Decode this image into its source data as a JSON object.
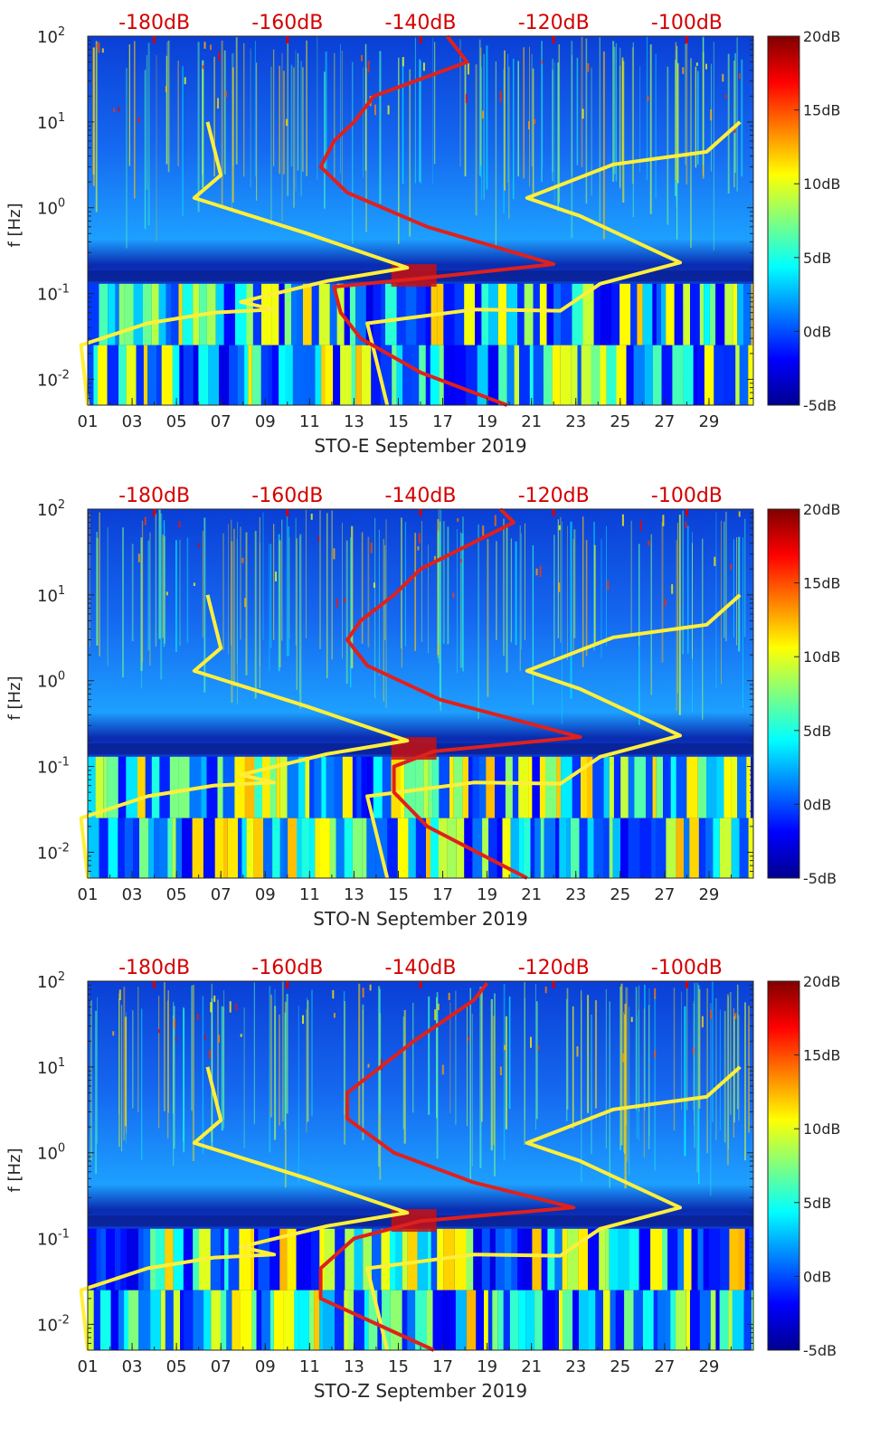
{
  "figure": {
    "ylabel": "f [Hz]",
    "y_ticks": [
      {
        "exp": -2,
        "base": "10",
        "sup": "-2"
      },
      {
        "exp": -1,
        "base": "10",
        "sup": "-1"
      },
      {
        "exp": 0,
        "base": "10",
        "sup": "0"
      },
      {
        "exp": 1,
        "base": "10",
        "sup": "1"
      },
      {
        "exp": 2,
        "base": "10",
        "sup": "2"
      }
    ],
    "x_ticks": [
      "01",
      "03",
      "05",
      "07",
      "09",
      "11",
      "13",
      "15",
      "17",
      "19",
      "21",
      "23",
      "25",
      "27",
      "29"
    ],
    "top_ticks": [
      "-180dB",
      "-160dB",
      "-140dB",
      "-120dB",
      "-100dB"
    ],
    "colorbar_ticks": [
      "20dB",
      "15dB",
      "10dB",
      "5dB",
      "0dB",
      "-5dB"
    ],
    "colors": {
      "red_curve": "#e0201c",
      "yellow_curve": "#ffef3a",
      "top_axis_text": "#d40000"
    }
  },
  "chart_data": [
    {
      "type": "heatmap",
      "title": "",
      "xlabel": "STO-E September 2019",
      "ylabel": "f [Hz]",
      "x_range_days": [
        1,
        31
      ],
      "y_range_hz": [
        0.005,
        100
      ],
      "y_scale": "log",
      "color_range_db": [
        -5,
        20
      ],
      "top_axis_range_db": [
        -190,
        -90
      ],
      "series": [
        {
          "name": "red-curve",
          "points_db_hz": [
            [
              -136,
              100
            ],
            [
              -133,
              50
            ],
            [
              -147,
              20
            ],
            [
              -150,
              10
            ],
            [
              -153,
              6
            ],
            [
              -155,
              3
            ],
            [
              -151,
              1.5
            ],
            [
              -139,
              0.6
            ],
            [
              -120,
              0.22
            ],
            [
              -140,
              0.15
            ],
            [
              -153,
              0.12
            ],
            [
              -152,
              0.06
            ],
            [
              -149,
              0.03
            ],
            [
              -140,
              0.012
            ],
            [
              -127,
              0.005
            ]
          ]
        },
        {
          "name": "yellow-curve",
          "points_db_hz": [
            [
              -190,
              0.005
            ],
            [
              -191,
              0.025
            ],
            [
              -181,
              0.045
            ],
            [
              -171,
              0.06
            ],
            [
              -162,
              0.065
            ],
            [
              -167,
              0.08
            ],
            [
              -154,
              0.14
            ],
            [
              -142,
              0.2
            ],
            [
              -157,
              0.5
            ],
            [
              -174,
              1.3
            ],
            [
              -170,
              2.4
            ],
            [
              -172,
              10
            ]
          ],
          "points_db_hz_right": [
            [
              -145,
              0.005
            ],
            [
              -148,
              0.045
            ],
            [
              -132,
              0.065
            ],
            [
              -119,
              0.063
            ],
            [
              -113,
              0.13
            ],
            [
              -101,
              0.23
            ],
            [
              -116,
              0.8
            ],
            [
              -124,
              1.3
            ],
            [
              -111,
              3.2
            ],
            [
              -97,
              4.5
            ],
            [
              -92,
              10
            ]
          ]
        }
      ]
    },
    {
      "type": "heatmap",
      "title": "",
      "xlabel": "STO-N September 2019",
      "ylabel": "f [Hz]",
      "x_range_days": [
        1,
        31
      ],
      "y_range_hz": [
        0.005,
        100
      ],
      "y_scale": "log",
      "color_range_db": [
        -5,
        20
      ],
      "top_axis_range_db": [
        -190,
        -90
      ],
      "series": [
        {
          "name": "red-curve",
          "points_db_hz": [
            [
              -128,
              100
            ],
            [
              -126,
              70
            ],
            [
              -140,
              20
            ],
            [
              -144,
              10
            ],
            [
              -149,
              5
            ],
            [
              -151,
              3
            ],
            [
              -148,
              1.5
            ],
            [
              -137,
              0.6
            ],
            [
              -116,
              0.22
            ],
            [
              -138,
              0.15
            ],
            [
              -144,
              0.1
            ],
            [
              -144,
              0.05
            ],
            [
              -139,
              0.02
            ],
            [
              -124,
              0.005
            ]
          ]
        },
        {
          "name": "yellow-curve",
          "points_db_hz": [
            [
              -190,
              0.005
            ],
            [
              -191,
              0.025
            ],
            [
              -181,
              0.045
            ],
            [
              -171,
              0.06
            ],
            [
              -162,
              0.065
            ],
            [
              -167,
              0.08
            ],
            [
              -154,
              0.14
            ],
            [
              -142,
              0.2
            ],
            [
              -157,
              0.5
            ],
            [
              -174,
              1.3
            ],
            [
              -170,
              2.4
            ],
            [
              -172,
              10
            ]
          ],
          "points_db_hz_right": [
            [
              -145,
              0.005
            ],
            [
              -148,
              0.045
            ],
            [
              -132,
              0.065
            ],
            [
              -119,
              0.063
            ],
            [
              -113,
              0.13
            ],
            [
              -101,
              0.23
            ],
            [
              -116,
              0.8
            ],
            [
              -124,
              1.3
            ],
            [
              -111,
              3.2
            ],
            [
              -97,
              4.5
            ],
            [
              -92,
              10
            ]
          ]
        }
      ]
    },
    {
      "type": "heatmap",
      "title": "",
      "xlabel": "STO-Z September 2019",
      "ylabel": "f [Hz]",
      "x_range_days": [
        1,
        31
      ],
      "y_range_hz": [
        0.005,
        100
      ],
      "y_scale": "log",
      "color_range_db": [
        -5,
        20
      ],
      "top_axis_range_db": [
        -190,
        -90
      ],
      "series": [
        {
          "name": "red-curve",
          "points_db_hz": [
            [
              -130,
              95
            ],
            [
              -132,
              60
            ],
            [
              -141,
              20
            ],
            [
              -146,
              10
            ],
            [
              -151,
              5
            ],
            [
              -151,
              2.5
            ],
            [
              -144,
              1.0
            ],
            [
              -132,
              0.45
            ],
            [
              -117,
              0.23
            ],
            [
              -140,
              0.16
            ],
            [
              -150,
              0.1
            ],
            [
              -155,
              0.045
            ],
            [
              -155,
              0.02
            ],
            [
              -138,
              0.005
            ]
          ]
        },
        {
          "name": "yellow-curve",
          "points_db_hz": [
            [
              -190,
              0.005
            ],
            [
              -191,
              0.025
            ],
            [
              -181,
              0.045
            ],
            [
              -171,
              0.06
            ],
            [
              -162,
              0.065
            ],
            [
              -167,
              0.08
            ],
            [
              -154,
              0.14
            ],
            [
              -142,
              0.2
            ],
            [
              -157,
              0.5
            ],
            [
              -174,
              1.3
            ],
            [
              -170,
              2.4
            ],
            [
              -172,
              10
            ]
          ],
          "points_db_hz_right": [
            [
              -145,
              0.005
            ],
            [
              -148,
              0.045
            ],
            [
              -132,
              0.065
            ],
            [
              -119,
              0.063
            ],
            [
              -113,
              0.13
            ],
            [
              -101,
              0.23
            ],
            [
              -116,
              0.8
            ],
            [
              -124,
              1.3
            ],
            [
              -111,
              3.2
            ],
            [
              -97,
              4.5
            ],
            [
              -92,
              10
            ]
          ]
        }
      ]
    }
  ]
}
